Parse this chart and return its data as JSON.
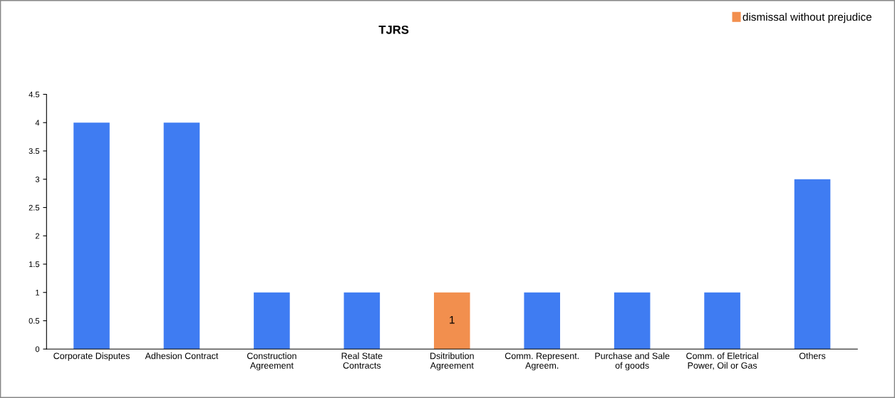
{
  "chart_data": {
    "type": "bar",
    "title": "TJRS",
    "categories": [
      "Corporate Disputes",
      "Adhesion Contract",
      "Construction\nAgreement",
      "Real State\nContracts",
      "Dsitribution\nAgreement",
      "Comm. Represent.\nAgreem.",
      "Purchase and Sale\nof goods",
      "Comm. of Eletrical\nPower, Oil or Gas",
      "Others"
    ],
    "stacked": true,
    "series": [
      {
        "color": "#3f7cf2",
        "values": [
          4,
          4,
          1,
          1,
          null,
          1,
          1,
          1,
          3
        ]
      },
      {
        "name": "dismissal without prejudice",
        "color": "#f28f4e",
        "values": [
          null,
          null,
          null,
          null,
          1,
          null,
          null,
          null,
          null
        ],
        "value_labels": [
          null,
          null,
          null,
          null,
          "1",
          null,
          null,
          null,
          null
        ]
      }
    ],
    "ylim": [
      0,
      4.5
    ],
    "yticks": [
      0,
      0.5,
      1,
      1.5,
      2,
      2.5,
      3,
      3.5,
      4,
      4.5
    ],
    "grid": false,
    "legend": "top right"
  }
}
